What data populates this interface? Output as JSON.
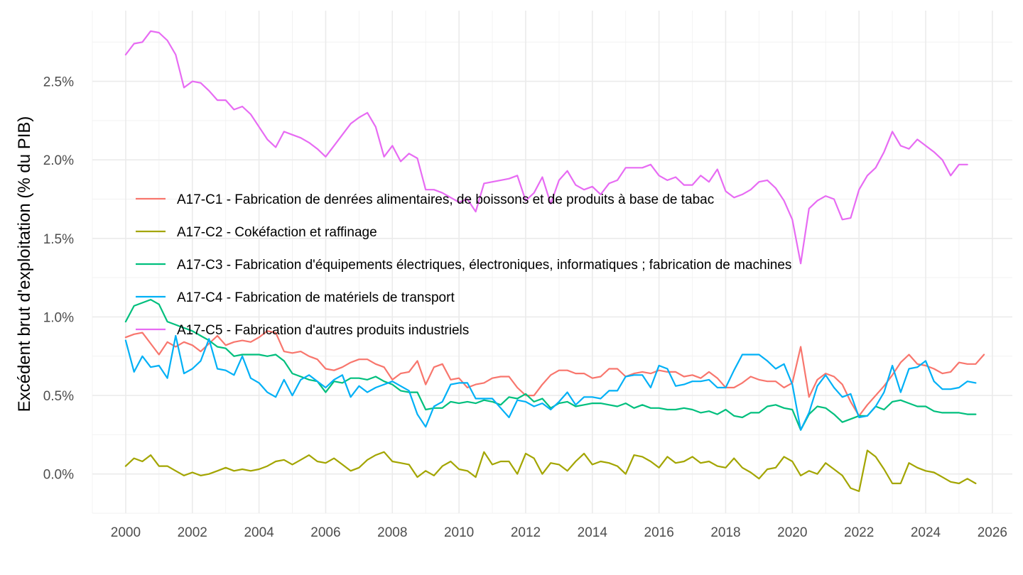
{
  "chart_data": {
    "type": "line",
    "title": "",
    "xlabel": "",
    "ylabel": "Excédent brut d'exploitation (% du PIB)",
    "xlim": [
      1999.0,
      2026.6
    ],
    "ylim": [
      -0.25,
      2.95
    ],
    "x_ticks": [
      2000,
      2002,
      2004,
      2006,
      2008,
      2010,
      2012,
      2014,
      2016,
      2018,
      2020,
      2022,
      2024,
      2026
    ],
    "y_ticks": [
      0,
      0.5,
      1.0,
      1.5,
      2.0,
      2.5
    ],
    "y_tick_labels": [
      "0.0%",
      "0.5%",
      "1.0%",
      "1.5%",
      "2.0%",
      "2.5%"
    ],
    "grid": true,
    "legend_position": "inside-left",
    "x_start": 2000,
    "x_step": 0.25,
    "series": [
      {
        "name": "A17-C1 - Fabrication de denrées alimentaires, de boissons et de produits à base de tabac",
        "color": "#F8766D",
        "values": [
          0.87,
          0.89,
          0.9,
          0.83,
          0.76,
          0.84,
          0.81,
          0.84,
          0.82,
          0.78,
          0.83,
          0.88,
          0.82,
          0.84,
          0.85,
          0.84,
          0.87,
          0.91,
          0.9,
          0.78,
          0.77,
          0.78,
          0.75,
          0.73,
          0.67,
          0.66,
          0.68,
          0.71,
          0.73,
          0.73,
          0.7,
          0.68,
          0.6,
          0.64,
          0.65,
          0.72,
          0.57,
          0.68,
          0.7,
          0.6,
          0.61,
          0.55,
          0.57,
          0.58,
          0.61,
          0.62,
          0.62,
          0.55,
          0.5,
          0.5,
          0.57,
          0.63,
          0.66,
          0.66,
          0.64,
          0.64,
          0.61,
          0.62,
          0.67,
          0.67,
          0.62,
          0.64,
          0.65,
          0.64,
          0.66,
          0.65,
          0.65,
          0.62,
          0.63,
          0.61,
          0.65,
          0.61,
          0.55,
          0.55,
          0.58,
          0.62,
          0.6,
          0.59,
          0.59,
          0.55,
          0.58,
          0.81,
          0.49,
          0.6,
          0.64,
          0.62,
          0.57,
          0.46,
          0.37,
          0.44,
          0.5,
          0.56,
          0.63,
          0.71,
          0.76,
          0.7,
          0.69,
          0.67,
          0.64,
          0.65,
          0.71,
          0.7,
          0.7,
          0.76
        ]
      },
      {
        "name": "A17-C2 - Cokéfaction et raffinage",
        "color": "#A3A500",
        "values": [
          0.05,
          0.1,
          0.08,
          0.12,
          0.05,
          0.05,
          0.02,
          -0.01,
          0.01,
          -0.01,
          0.0,
          0.02,
          0.04,
          0.02,
          0.03,
          0.02,
          0.03,
          0.05,
          0.08,
          0.09,
          0.06,
          0.09,
          0.12,
          0.08,
          0.07,
          0.1,
          0.06,
          0.02,
          0.04,
          0.09,
          0.12,
          0.14,
          0.08,
          0.07,
          0.06,
          -0.02,
          0.02,
          -0.01,
          0.05,
          0.08,
          0.03,
          0.02,
          -0.02,
          0.14,
          0.06,
          0.08,
          0.08,
          0.0,
          0.13,
          0.1,
          0.0,
          0.07,
          0.06,
          0.02,
          0.08,
          0.13,
          0.06,
          0.08,
          0.07,
          0.05,
          0.0,
          0.12,
          0.11,
          0.08,
          0.04,
          0.11,
          0.07,
          0.08,
          0.11,
          0.07,
          0.08,
          0.05,
          0.04,
          0.1,
          0.04,
          0.01,
          -0.03,
          0.03,
          0.04,
          0.11,
          0.08,
          -0.01,
          0.02,
          0.0,
          0.07,
          0.03,
          -0.01,
          -0.09,
          -0.11,
          0.15,
          0.11,
          0.03,
          -0.06,
          -0.06,
          0.07,
          0.04,
          0.02,
          0.01,
          -0.02,
          -0.05,
          -0.06,
          -0.03,
          -0.06
        ]
      },
      {
        "name": "A17-C3 - Fabrication d'équipements électriques, électroniques, informatiques ; fabrication de machines",
        "color": "#00BF7D",
        "values": [
          0.97,
          1.07,
          1.09,
          1.11,
          1.08,
          0.97,
          0.95,
          0.93,
          0.91,
          0.88,
          0.85,
          0.81,
          0.8,
          0.75,
          0.76,
          0.76,
          0.76,
          0.75,
          0.76,
          0.72,
          0.64,
          0.62,
          0.6,
          0.59,
          0.52,
          0.59,
          0.58,
          0.61,
          0.61,
          0.6,
          0.62,
          0.59,
          0.57,
          0.53,
          0.52,
          0.52,
          0.41,
          0.42,
          0.42,
          0.46,
          0.45,
          0.46,
          0.45,
          0.47,
          0.46,
          0.44,
          0.49,
          0.48,
          0.51,
          0.46,
          0.48,
          0.42,
          0.45,
          0.46,
          0.43,
          0.44,
          0.45,
          0.45,
          0.44,
          0.43,
          0.45,
          0.42,
          0.44,
          0.42,
          0.42,
          0.41,
          0.41,
          0.42,
          0.41,
          0.39,
          0.4,
          0.38,
          0.41,
          0.37,
          0.36,
          0.39,
          0.39,
          0.43,
          0.44,
          0.42,
          0.41,
          0.28,
          0.38,
          0.43,
          0.42,
          0.38,
          0.33,
          0.35,
          0.37,
          0.37,
          0.43,
          0.41,
          0.46,
          0.47,
          0.45,
          0.43,
          0.43,
          0.4,
          0.39,
          0.39,
          0.39,
          0.38,
          0.38
        ]
      },
      {
        "name": "A17-C4 - Fabrication de matériels de transport",
        "color": "#00B0F6",
        "values": [
          0.85,
          0.65,
          0.75,
          0.68,
          0.69,
          0.61,
          0.88,
          0.64,
          0.67,
          0.72,
          0.86,
          0.67,
          0.66,
          0.63,
          0.75,
          0.61,
          0.58,
          0.52,
          0.49,
          0.6,
          0.5,
          0.6,
          0.63,
          0.59,
          0.55,
          0.6,
          0.63,
          0.49,
          0.56,
          0.52,
          0.55,
          0.57,
          0.59,
          0.56,
          0.53,
          0.38,
          0.3,
          0.43,
          0.46,
          0.57,
          0.58,
          0.58,
          0.48,
          0.48,
          0.48,
          0.42,
          0.36,
          0.47,
          0.46,
          0.43,
          0.45,
          0.41,
          0.46,
          0.52,
          0.44,
          0.49,
          0.49,
          0.48,
          0.53,
          0.53,
          0.62,
          0.63,
          0.63,
          0.55,
          0.69,
          0.67,
          0.56,
          0.57,
          0.59,
          0.59,
          0.6,
          0.55,
          0.55,
          0.66,
          0.76,
          0.76,
          0.76,
          0.72,
          0.67,
          0.7,
          0.57,
          0.28,
          0.39,
          0.56,
          0.63,
          0.55,
          0.49,
          0.51,
          0.36,
          0.37,
          0.43,
          0.52,
          0.69,
          0.52,
          0.67,
          0.68,
          0.72,
          0.59,
          0.54,
          0.54,
          0.55,
          0.59,
          0.58
        ]
      },
      {
        "name": "A17-C5 - Fabrication d'autres produits industriels",
        "color": "#E76BF3",
        "values": [
          2.67,
          2.74,
          2.75,
          2.82,
          2.81,
          2.76,
          2.67,
          2.46,
          2.5,
          2.49,
          2.44,
          2.38,
          2.38,
          2.32,
          2.34,
          2.29,
          2.21,
          2.13,
          2.08,
          2.18,
          2.16,
          2.14,
          2.11,
          2.07,
          2.02,
          2.09,
          2.16,
          2.23,
          2.27,
          2.3,
          2.21,
          2.02,
          2.09,
          1.99,
          2.04,
          2.01,
          1.81,
          1.81,
          1.79,
          1.76,
          1.73,
          1.75,
          1.67,
          1.85,
          1.86,
          1.87,
          1.88,
          1.9,
          1.74,
          1.79,
          1.89,
          1.72,
          1.87,
          1.93,
          1.84,
          1.81,
          1.83,
          1.78,
          1.85,
          1.87,
          1.95,
          1.95,
          1.95,
          1.97,
          1.9,
          1.87,
          1.89,
          1.84,
          1.84,
          1.9,
          1.86,
          1.94,
          1.8,
          1.76,
          1.78,
          1.81,
          1.86,
          1.87,
          1.82,
          1.74,
          1.62,
          1.34,
          1.69,
          1.74,
          1.77,
          1.75,
          1.62,
          1.63,
          1.81,
          1.9,
          1.95,
          2.05,
          2.18,
          2.09,
          2.07,
          2.13,
          2.09,
          2.05,
          2.0,
          1.9,
          1.97,
          1.97
        ]
      }
    ]
  }
}
